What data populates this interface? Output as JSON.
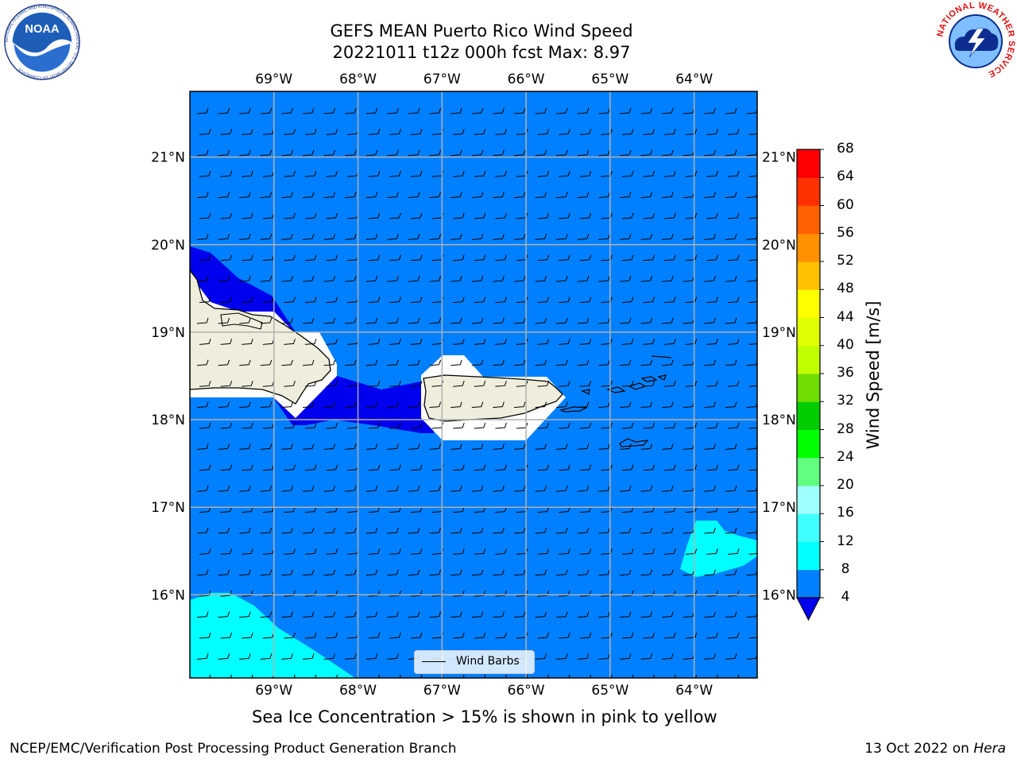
{
  "header": {
    "title_line1": "GEFS MEAN Puerto Rico Wind Speed",
    "title_line2": "20221011 t12z 000h fcst   Max: 8.97"
  },
  "logos": {
    "noaa": {
      "text": "NOAA",
      "ring_text": "NATIONAL OCEANIC AND ATMOSPHERIC ADMINISTRATION · U.S. DEPARTMENT OF COMMERCE"
    },
    "nws": {
      "ring_text": "NATIONAL WEATHER SERVICE"
    }
  },
  "map": {
    "lon_range": [
      -70,
      -63.25
    ],
    "lat_range": [
      15.05,
      21.75
    ],
    "lon_ticks_top": [
      "69°W",
      "68°W",
      "67°W",
      "66°W",
      "65°W",
      "64°W"
    ],
    "lon_ticks_bottom": [
      "69°W",
      "68°W",
      "67°W",
      "66°W",
      "65°W",
      "64°W"
    ],
    "lat_ticks_left": [
      "21°N",
      "20°N",
      "19°N",
      "18°N",
      "17°N",
      "16°N"
    ],
    "lat_ticks_right": [
      "21°N",
      "20°N",
      "19°N",
      "18°N",
      "17°N",
      "16°N"
    ],
    "legend_label": "Wind Barbs",
    "background_color": "#0080ff"
  },
  "colorbar": {
    "title": "Wind Speed [m/s]",
    "levels": [
      "4",
      "8",
      "12",
      "16",
      "20",
      "24",
      "28",
      "32",
      "36",
      "40",
      "44",
      "48",
      "52",
      "56",
      "60",
      "64",
      "68"
    ],
    "colors": [
      "#0000ee",
      "#0080ff",
      "#00ffff",
      "#40ffff",
      "#a0ffff",
      "#60ff80",
      "#00ff00",
      "#00cc00",
      "#70dd00",
      "#c0ff00",
      "#e0ff00",
      "#ffff00",
      "#ffc000",
      "#ff9000",
      "#ff6000",
      "#ff3000",
      "#ff0000"
    ]
  },
  "caption": "Sea Ice Concentration > 15% is shown in pink to yellow",
  "footer": {
    "left": "NCEP/EMC/Verification Post Processing Product Generation Branch",
    "date": "13 Oct 2022 on",
    "machine": "Hera"
  }
}
